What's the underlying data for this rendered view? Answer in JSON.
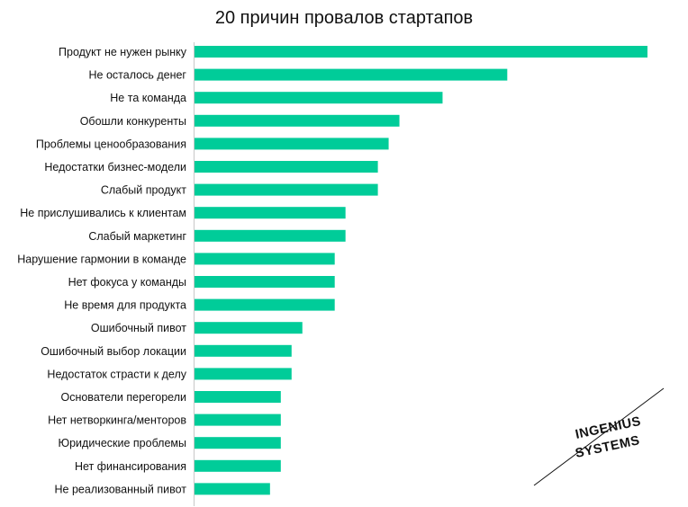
{
  "chart_data": {
    "type": "bar",
    "orientation": "horizontal",
    "title": "20 причин провалов стартапов",
    "xlabel": "",
    "ylabel": "",
    "categories": [
      "Продукт не нужен рынку",
      "Не осталось денег",
      "Не та команда",
      "Обошли конкуренты",
      "Проблемы ценообразования",
      "Недостатки бизнес-модели",
      "Слабый продукт",
      "Не прислушивались к клиентам",
      "Слабый маркетинг",
      "Нарушение гармонии в команде",
      "Нет фокуса у команды",
      "Не время для продукта",
      "Ошибочный пивот",
      "Ошибочный выбор локации",
      "Недостаток страсти к делу",
      "Основатели перегорели",
      "Нет нетворкинга/менторов",
      "Юридические проблемы",
      "Нет финансирования",
      "Не реализованный пивот"
    ],
    "values": [
      42,
      29,
      23,
      19,
      18,
      17,
      17,
      14,
      14,
      13,
      13,
      13,
      10,
      9,
      9,
      8,
      8,
      8,
      8,
      7
    ],
    "xlim": [
      0,
      42
    ],
    "grid": false,
    "legend": "none",
    "bar_color": "#00CC99"
  },
  "logo": {
    "line1": "INGENIUS",
    "line2": "SYSTEMS"
  }
}
